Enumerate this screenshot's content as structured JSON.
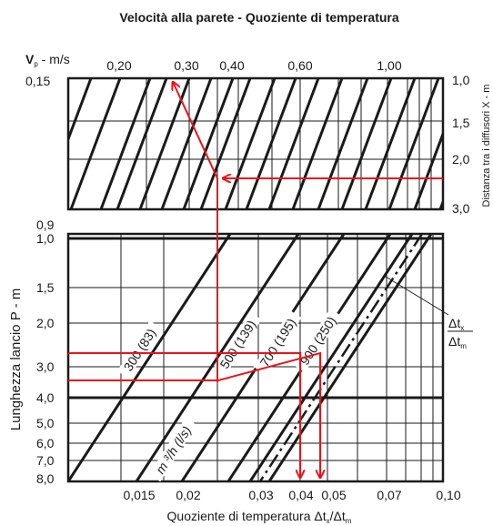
{
  "chart_data": {
    "type": "nomogram",
    "title": "Velocità alla parete - Quoziente di temperatura",
    "top_panel": {
      "ylabel_main": "V",
      "ylabel_sub": "p",
      "ylabel_unit": " - m/s",
      "ylabel_value": "0,15",
      "velocity_ticks": [
        "0,20",
        "0,30",
        "0,40",
        "0,60",
        "1,00"
      ],
      "right_axis_label": "Distanza tra i diffusori X - m",
      "right_ticks": [
        "1,0",
        "1,5",
        "2,0",
        "3,0"
      ]
    },
    "bottom_panel": {
      "ylabel": "Lunghezza lancio P - m",
      "y_ticks": [
        "0,9",
        "1,0",
        "1,5",
        "2,0",
        "3,0",
        "4,0",
        "5,0",
        "6,0",
        "7,0",
        "8,0"
      ],
      "xlabel": "Quoziente di temperatura Δt",
      "xlabel_sub1": "x",
      "xlabel_mid": "/Δt",
      "xlabel_sub2": "m",
      "x_ticks": [
        "0,015",
        "0,02",
        "0,03",
        "0,04",
        "0,05",
        "0,07",
        "0,10"
      ],
      "flow_axis_label": "m ³/h (l/s)",
      "flow_lines": [
        {
          "label": "300 (83)",
          "m3h": 300,
          "ls": 83
        },
        {
          "label": "500 (139)",
          "m3h": 500,
          "ls": 139
        },
        {
          "label": "700 (195)",
          "m3h": 700,
          "ls": 195
        },
        {
          "label": "900 (250)",
          "m3h": 900,
          "ls": 250
        }
      ],
      "ratio_label_top": "Δt",
      "ratio_label_top_sub": "x",
      "ratio_label_bottom": "Δt",
      "ratio_label_bottom_sub": "m"
    },
    "colors": {
      "grid": "#1a1a1a",
      "guide": "#e8141b",
      "background": "#ffffff"
    }
  }
}
